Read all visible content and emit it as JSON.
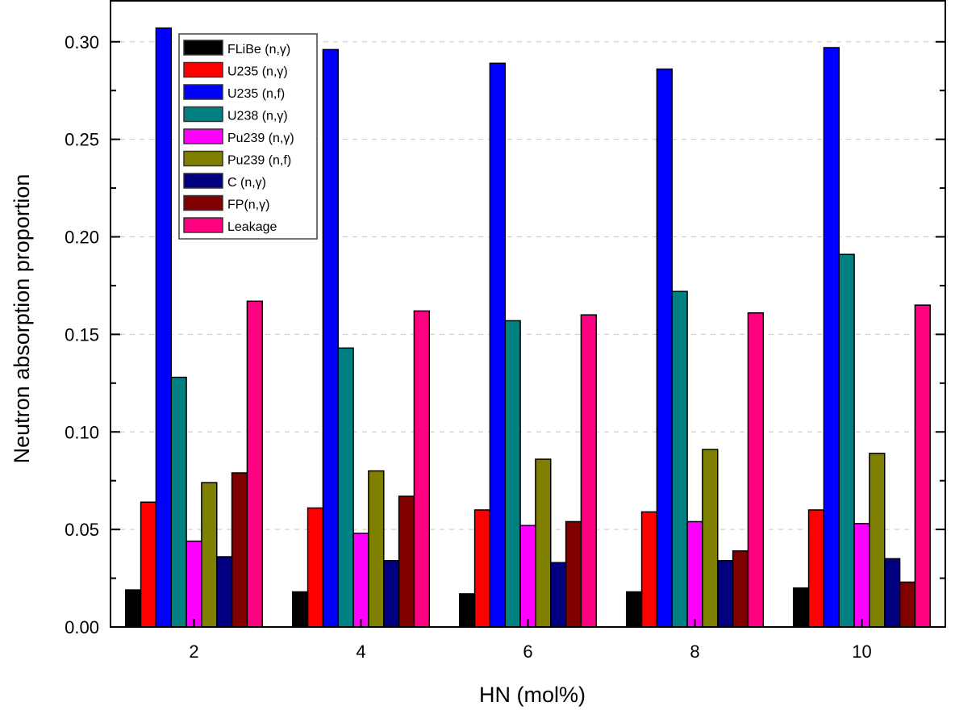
{
  "chart_data": {
    "type": "bar",
    "title": "",
    "xlabel": "HN (mol%)",
    "ylabel": "Neutron absorption proportion",
    "categories": [
      "2",
      "4",
      "6",
      "8",
      "10"
    ],
    "x": [
      2,
      4,
      6,
      8,
      10
    ],
    "xlim": [
      1,
      11
    ],
    "ylim": [
      0,
      0.321
    ],
    "yticks": [
      0.0,
      0.05,
      0.1,
      0.15,
      0.2,
      0.25,
      0.3
    ],
    "ytick_labels": [
      "0.00",
      "0.05",
      "0.10",
      "0.15",
      "0.20",
      "0.25",
      "0.30"
    ],
    "grid": "horizontal dashed",
    "legend_position": "top-left",
    "series": [
      {
        "name": "FLiBe (n,γ)",
        "color": "#000000",
        "values": [
          0.019,
          0.018,
          0.017,
          0.018,
          0.02
        ]
      },
      {
        "name": "U235 (n,γ)",
        "color": "#ff0000",
        "values": [
          0.064,
          0.061,
          0.06,
          0.059,
          0.06
        ]
      },
      {
        "name": "U235 (n,f)",
        "color": "#0000ff",
        "values": [
          0.307,
          0.296,
          0.289,
          0.286,
          0.297
        ]
      },
      {
        "name": "U238 (n,γ)",
        "color": "#008080",
        "values": [
          0.128,
          0.143,
          0.157,
          0.172,
          0.191
        ]
      },
      {
        "name": "Pu239 (n,γ)",
        "color": "#ff00ff",
        "values": [
          0.044,
          0.048,
          0.052,
          0.054,
          0.053
        ]
      },
      {
        "name": "Pu239 (n,f)",
        "color": "#808000",
        "values": [
          0.074,
          0.08,
          0.086,
          0.091,
          0.089
        ]
      },
      {
        "name": "C (n,γ)",
        "color": "#000080",
        "values": [
          0.036,
          0.034,
          0.033,
          0.034,
          0.035
        ]
      },
      {
        "name": "FP(n,γ)",
        "color": "#800000",
        "values": [
          0.079,
          0.067,
          0.054,
          0.039,
          0.023
        ]
      },
      {
        "name": "Leakage",
        "color": "#ff0080",
        "values": [
          0.167,
          0.162,
          0.16,
          0.161,
          0.165
        ]
      }
    ]
  }
}
